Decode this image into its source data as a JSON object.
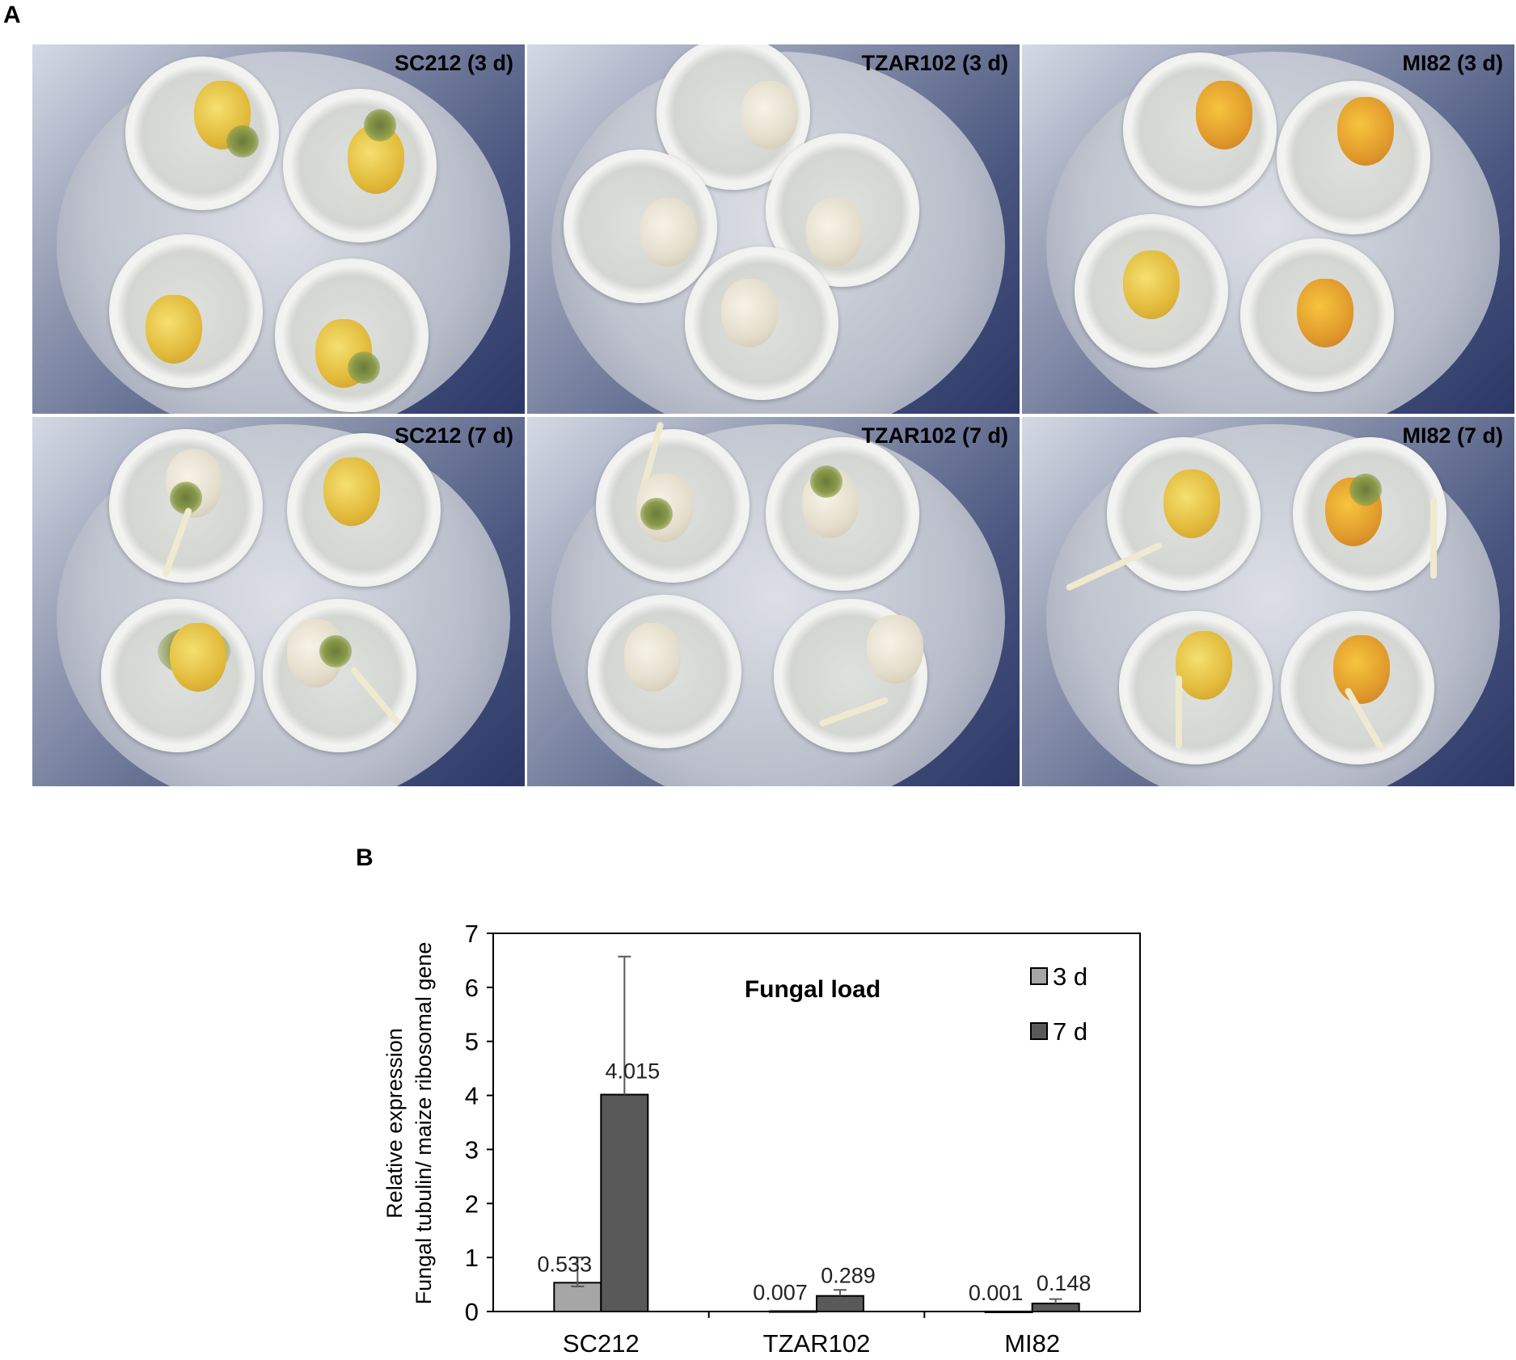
{
  "panel_a": {
    "letter": "A",
    "photos": [
      {
        "label": "SC212 (3 d)"
      },
      {
        "label": "TZAR102 (3 d)"
      },
      {
        "label": "MI82 (3 d)"
      },
      {
        "label": "SC212 (7 d)"
      },
      {
        "label": "TZAR102 (7 d)"
      },
      {
        "label": "MI82 (7 d)"
      }
    ]
  },
  "panel_b": {
    "letter": "B"
  },
  "chart_data": {
    "type": "bar",
    "title": "Fungal load",
    "ylabel_line1": "Relative expression",
    "ylabel_line2": "Fungal tubulin/ maize ribosomal gene",
    "xlabel": "",
    "categories": [
      "SC212",
      "TZAR102",
      "MI82"
    ],
    "ylim": [
      0,
      7
    ],
    "yticks": [
      "0",
      "1",
      "2",
      "3",
      "4",
      "5",
      "6",
      "7"
    ],
    "legend_position": "top-right",
    "series": [
      {
        "name": "3 d",
        "color": "#a6a6a6",
        "values": [
          0.533,
          0.007,
          0.001
        ],
        "labels": [
          "0.533",
          "0.007",
          "0.001"
        ],
        "error_high": [
          1.0,
          0.0,
          0.0
        ],
        "error_low": [
          0.07,
          0.007,
          0.001
        ]
      },
      {
        "name": "7 d",
        "color": "#595959",
        "values": [
          4.015,
          0.289,
          0.148
        ],
        "labels": [
          "4.015",
          "0.289",
          "0.148"
        ],
        "error_high": [
          6.57,
          0.4,
          0.23
        ],
        "error_low": [
          4.015,
          0.289,
          0.148
        ]
      }
    ]
  }
}
